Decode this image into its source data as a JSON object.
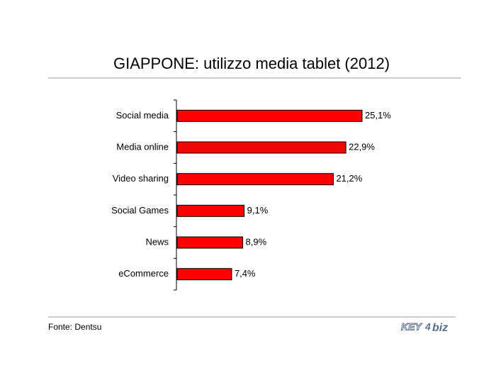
{
  "chart_data": {
    "type": "bar",
    "orientation": "horizontal",
    "title": "GIAPPONE: utilizzo media tablet (2012)",
    "categories": [
      "Social media",
      "Media online",
      "Video sharing",
      "Social Games",
      "News",
      "eCommerce"
    ],
    "values": [
      25.1,
      22.9,
      21.2,
      9.1,
      8.9,
      7.4
    ],
    "value_labels": [
      "25,1%",
      "22,9%",
      "21,2%",
      "9,1%",
      "8,9%",
      "7,4%"
    ],
    "color": "#ff0000"
  },
  "footer": {
    "source": "Fonte: Dentsu",
    "logo": [
      "KEY",
      "4",
      "biz"
    ]
  }
}
